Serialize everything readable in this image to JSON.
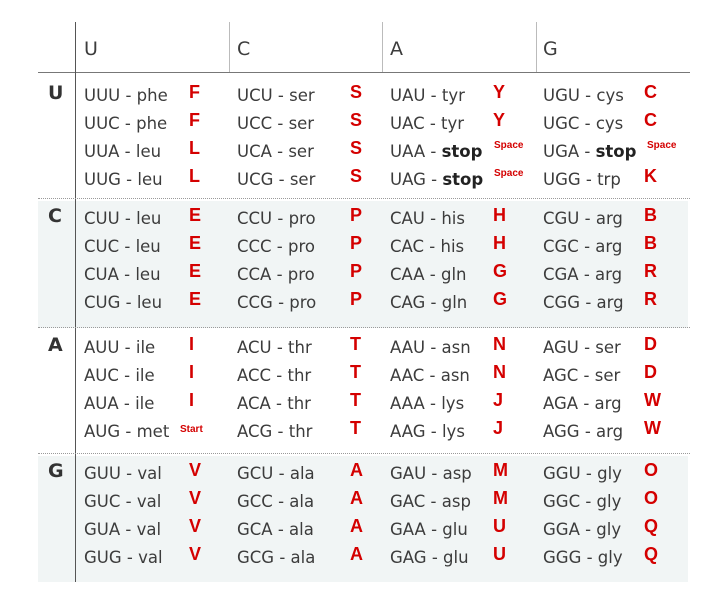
{
  "columns": [
    "U",
    "C",
    "A",
    "G"
  ],
  "rows": [
    {
      "base": "U",
      "cells": [
        [
          {
            "codon": "UUU - phe",
            "letter": "F"
          },
          {
            "codon": "UUC - phe",
            "letter": "F"
          },
          {
            "codon": "UUA - leu",
            "letter": "L"
          },
          {
            "codon": "UUG - leu",
            "letter": "L"
          }
        ],
        [
          {
            "codon": "UCU - ser",
            "letter": "S"
          },
          {
            "codon": "UCC - ser",
            "letter": "S"
          },
          {
            "codon": "UCA - ser",
            "letter": "S"
          },
          {
            "codon": "UCG - ser",
            "letter": "S"
          }
        ],
        [
          {
            "codon": "UAU - tyr",
            "letter": "Y"
          },
          {
            "codon": "UAC - tyr",
            "letter": "Y"
          },
          {
            "codon": "UAA - ",
            "stop": "stop",
            "letter": "Space"
          },
          {
            "codon": "UAG - ",
            "stop": "stop",
            "letter": "Space"
          }
        ],
        [
          {
            "codon": "UGU - cys",
            "letter": "C"
          },
          {
            "codon": "UGC - cys",
            "letter": "C"
          },
          {
            "codon": "UGA - ",
            "stop": "stop",
            "letter": "Space"
          },
          {
            "codon": "UGG - trp",
            "letter": "K"
          }
        ]
      ]
    },
    {
      "base": "C",
      "cells": [
        [
          {
            "codon": "CUU - leu",
            "letter": "E"
          },
          {
            "codon": "CUC - leu",
            "letter": "E"
          },
          {
            "codon": "CUA - leu",
            "letter": "E"
          },
          {
            "codon": "CUG - leu",
            "letter": "E"
          }
        ],
        [
          {
            "codon": "CCU - pro",
            "letter": "P"
          },
          {
            "codon": "CCC - pro",
            "letter": "P"
          },
          {
            "codon": "CCA - pro",
            "letter": "P"
          },
          {
            "codon": "CCG - pro",
            "letter": "P"
          }
        ],
        [
          {
            "codon": "CAU - his",
            "letter": "H"
          },
          {
            "codon": "CAC - his",
            "letter": "H"
          },
          {
            "codon": "CAA - gln",
            "letter": "G"
          },
          {
            "codon": "CAG - gln",
            "letter": "G"
          }
        ],
        [
          {
            "codon": "CGU - arg",
            "letter": "B"
          },
          {
            "codon": "CGC - arg",
            "letter": "B"
          },
          {
            "codon": "CGA - arg",
            "letter": "R"
          },
          {
            "codon": "CGG - arg",
            "letter": "R"
          }
        ]
      ]
    },
    {
      "base": "A",
      "cells": [
        [
          {
            "codon": "AUU - ile",
            "letter": "I"
          },
          {
            "codon": "AUC - ile",
            "letter": "I"
          },
          {
            "codon": "AUA - ile",
            "letter": "I"
          },
          {
            "codon": "AUG - met",
            "letter": "Start"
          }
        ],
        [
          {
            "codon": "ACU - thr",
            "letter": "T"
          },
          {
            "codon": "ACC - thr",
            "letter": "T"
          },
          {
            "codon": "ACA - thr",
            "letter": "T"
          },
          {
            "codon": "ACG - thr",
            "letter": "T"
          }
        ],
        [
          {
            "codon": "AAU - asn",
            "letter": "N"
          },
          {
            "codon": "AAC - asn",
            "letter": "N"
          },
          {
            "codon": "AAA - lys",
            "letter": "J"
          },
          {
            "codon": "AAG - lys",
            "letter": "J"
          }
        ],
        [
          {
            "codon": "AGU - ser",
            "letter": "D"
          },
          {
            "codon": "AGC - ser",
            "letter": "D"
          },
          {
            "codon": "AGA - arg",
            "letter": "W"
          },
          {
            "codon": "AGG - arg",
            "letter": "W"
          }
        ]
      ]
    },
    {
      "base": "G",
      "cells": [
        [
          {
            "codon": "GUU - val",
            "letter": "V"
          },
          {
            "codon": "GUC - val",
            "letter": "V"
          },
          {
            "codon": "GUA - val",
            "letter": "V"
          },
          {
            "codon": "GUG - val",
            "letter": "V"
          }
        ],
        [
          {
            "codon": "GCU - ala",
            "letter": "A"
          },
          {
            "codon": "GCC - ala",
            "letter": "A"
          },
          {
            "codon": "GCA - ala",
            "letter": "A"
          },
          {
            "codon": "GCG - ala",
            "letter": "A"
          }
        ],
        [
          {
            "codon": "GAU - asp",
            "letter": "M"
          },
          {
            "codon": "GAC - asp",
            "letter": "M"
          },
          {
            "codon": "GAA - glu",
            "letter": "U"
          },
          {
            "codon": "GAG - glu",
            "letter": "U"
          }
        ],
        [
          {
            "codon": "GGU - gly",
            "letter": "O"
          },
          {
            "codon": "GGC - gly",
            "letter": "O"
          },
          {
            "codon": "GGA - gly",
            "letter": "Q"
          },
          {
            "codon": "GGG - gly",
            "letter": "Q"
          }
        ]
      ]
    }
  ],
  "colors": {
    "letter": "#d40000",
    "shade": "#f1f5f5",
    "text": "#3c3c3c"
  }
}
